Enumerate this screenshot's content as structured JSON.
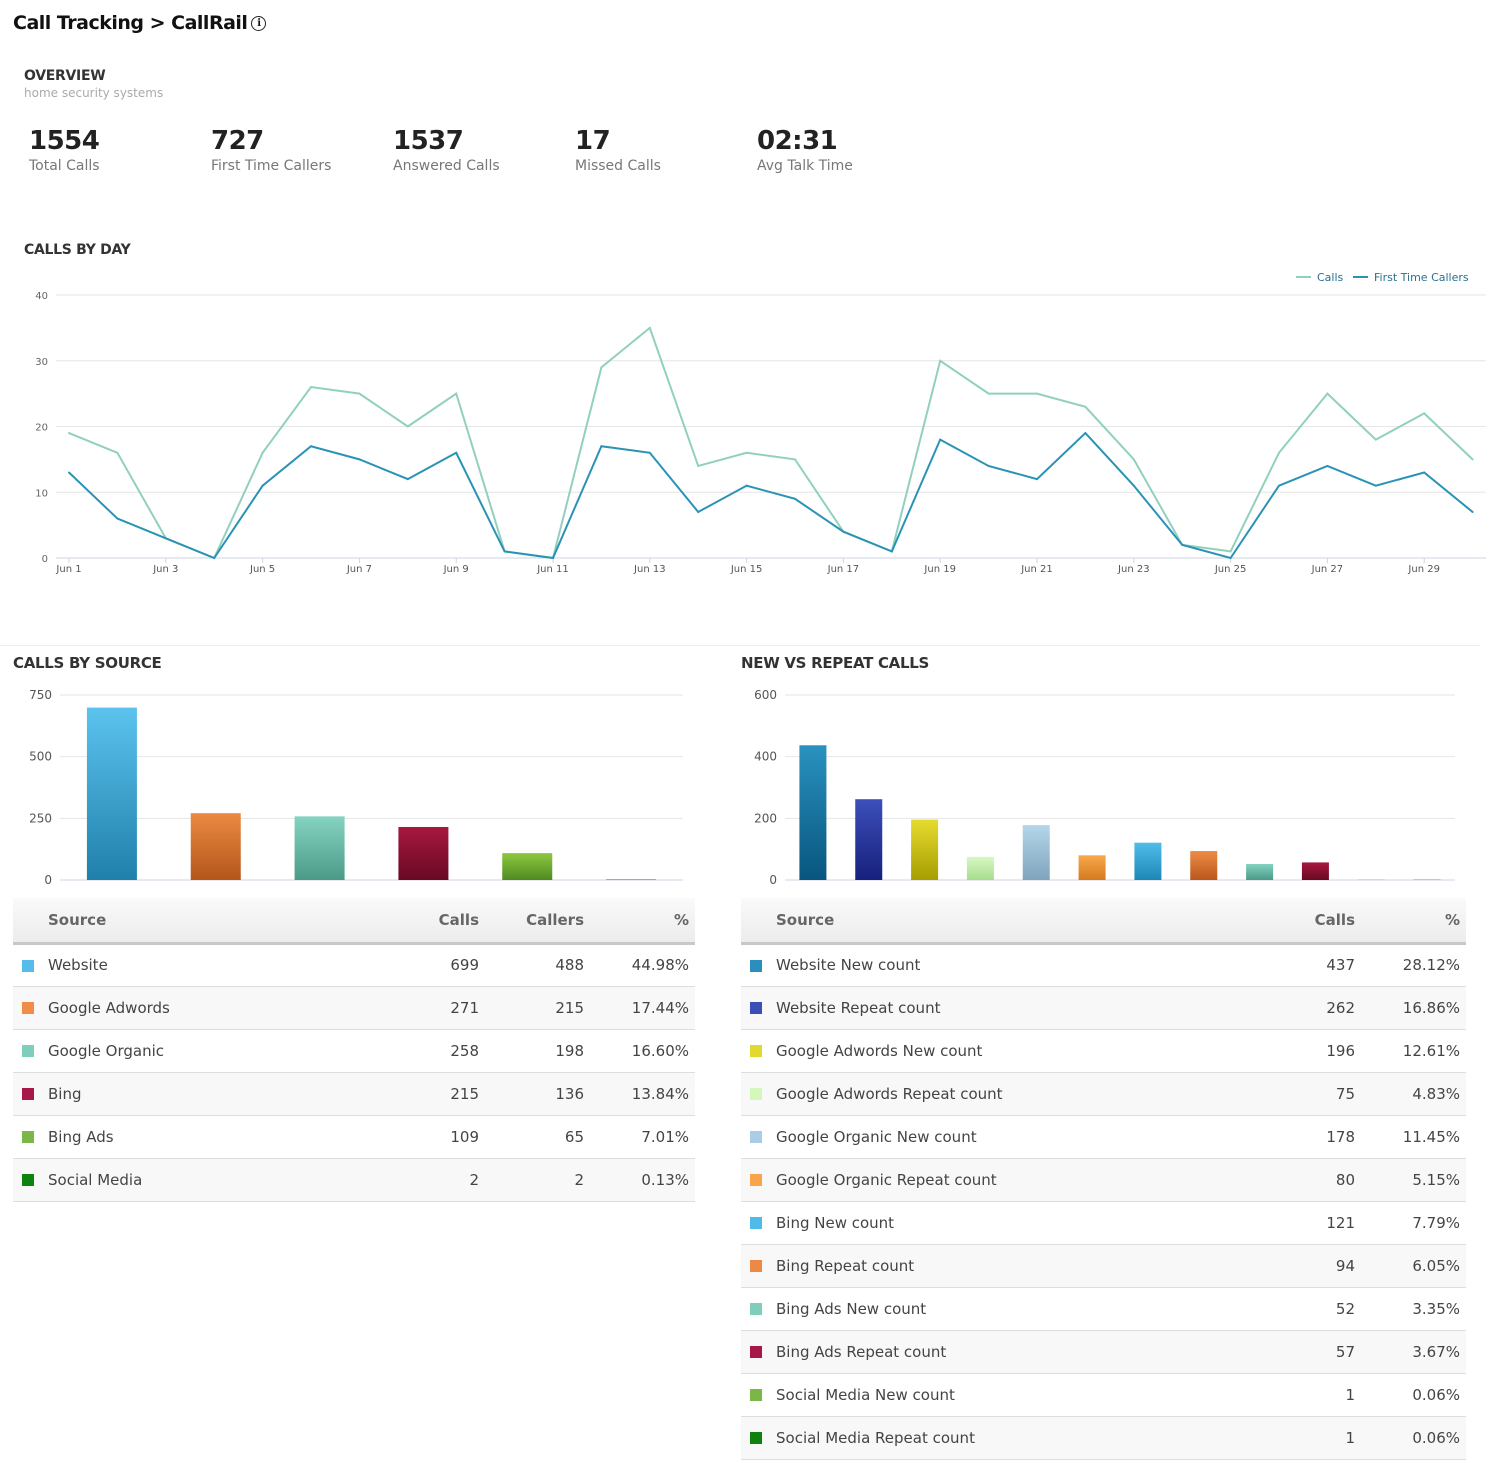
{
  "header": {
    "title": "Call Tracking > CallRail",
    "info_icon": "info-icon"
  },
  "overview": {
    "heading": "OVERVIEW",
    "subtitle": "home security systems",
    "kpis": [
      {
        "value": "1554",
        "label": "Total Calls"
      },
      {
        "value": "727",
        "label": "First Time Callers"
      },
      {
        "value": "1537",
        "label": "Answered Calls"
      },
      {
        "value": "17",
        "label": "Missed Calls"
      },
      {
        "value": "02:31",
        "label": "Avg Talk Time"
      }
    ]
  },
  "calls_by_day": {
    "heading": "CALLS BY DAY"
  },
  "calls_by_source": {
    "heading": "CALLS BY SOURCE",
    "columns": [
      "Source",
      "Calls",
      "Callers",
      "%"
    ],
    "rows": [
      {
        "source": "Website",
        "calls": "699",
        "callers": "488",
        "pct": "44.98%",
        "color": "#56bdea"
      },
      {
        "source": "Google Adwords",
        "calls": "271",
        "callers": "215",
        "pct": "17.44%",
        "color": "#f08d47"
      },
      {
        "source": "Google Organic",
        "calls": "258",
        "callers": "198",
        "pct": "16.60%",
        "color": "#7fcdbb"
      },
      {
        "source": "Bing",
        "calls": "215",
        "callers": "136",
        "pct": "13.84%",
        "color": "#a8174a"
      },
      {
        "source": "Bing Ads",
        "calls": "109",
        "callers": "65",
        "pct": "7.01%",
        "color": "#7ab648"
      },
      {
        "source": "Social Media",
        "calls": "2",
        "callers": "2",
        "pct": "0.13%",
        "color": "#0d820d"
      }
    ]
  },
  "new_vs_repeat": {
    "heading": "NEW VS REPEAT CALLS",
    "columns": [
      "Source",
      "Calls",
      "%"
    ],
    "rows": [
      {
        "source": "Website New count",
        "calls": "437",
        "pct": "28.12%",
        "color": "#2a8fbd"
      },
      {
        "source": "Website Repeat count",
        "calls": "262",
        "pct": "16.86%",
        "color": "#3a4fb5"
      },
      {
        "source": "Google Adwords New count",
        "calls": "196",
        "pct": "12.61%",
        "color": "#e2d82e"
      },
      {
        "source": "Google Adwords Repeat count",
        "calls": "75",
        "pct": "4.83%",
        "color": "#d4f7bc"
      },
      {
        "source": "Google Organic New count",
        "calls": "178",
        "pct": "11.45%",
        "color": "#a9cde4"
      },
      {
        "source": "Google Organic Repeat count",
        "calls": "80",
        "pct": "5.15%",
        "color": "#f6a548"
      },
      {
        "source": "Bing New count",
        "calls": "121",
        "pct": "7.79%",
        "color": "#4fbbe9"
      },
      {
        "source": "Bing Repeat count",
        "calls": "94",
        "pct": "6.05%",
        "color": "#ec8a45"
      },
      {
        "source": "Bing Ads New count",
        "calls": "52",
        "pct": "3.35%",
        "color": "#7fcdbb"
      },
      {
        "source": "Bing Ads Repeat count",
        "calls": "57",
        "pct": "3.67%",
        "color": "#a8174a"
      },
      {
        "source": "Social Media New count",
        "calls": "1",
        "pct": "0.06%",
        "color": "#7ab648"
      },
      {
        "source": "Social Media Repeat count",
        "calls": "1",
        "pct": "0.06%",
        "color": "#0d820d"
      }
    ]
  },
  "chart_data": [
    {
      "type": "line",
      "title": "CALLS BY DAY",
      "legend": "top-right",
      "grid": true,
      "ylim": [
        0,
        40
      ],
      "yticks": [
        "0",
        "10",
        "20",
        "30",
        "40"
      ],
      "x": [
        "Jun 1",
        "Jun 2",
        "Jun 3",
        "Jun 4",
        "Jun 5",
        "Jun 6",
        "Jun 7",
        "Jun 8",
        "Jun 9",
        "Jun 10",
        "Jun 11",
        "Jun 12",
        "Jun 13",
        "Jun 14",
        "Jun 15",
        "Jun 16",
        "Jun 17",
        "Jun 18",
        "Jun 19",
        "Jun 20",
        "Jun 21",
        "Jun 22",
        "Jun 23",
        "Jun 24",
        "Jun 25",
        "Jun 26",
        "Jun 27",
        "Jun 28",
        "Jun 29",
        "Jun 30"
      ],
      "xtick_labels": [
        "Jun 1",
        "Jun 3",
        "Jun 5",
        "Jun 7",
        "Jun 9",
        "Jun 11",
        "Jun 13",
        "Jun 15",
        "Jun 17",
        "Jun 19",
        "Jun 21",
        "Jun 23",
        "Jun 25",
        "Jun 27",
        "Jun 29"
      ],
      "series": [
        {
          "name": "Calls",
          "color": "#91d0bf",
          "values": [
            19,
            16,
            3,
            0,
            16,
            26,
            25,
            20,
            25,
            1,
            0,
            29,
            35,
            14,
            16,
            15,
            4,
            1,
            30,
            25,
            25,
            23,
            15,
            2,
            1,
            16,
            25,
            18,
            22,
            15
          ]
        },
        {
          "name": "First Time Callers",
          "color": "#2a93b5",
          "values": [
            13,
            6,
            3,
            0,
            11,
            17,
            15,
            12,
            16,
            1,
            0,
            17,
            16,
            7,
            11,
            9,
            4,
            1,
            18,
            14,
            12,
            19,
            11,
            2,
            0,
            11,
            14,
            11,
            13,
            7
          ]
        }
      ]
    },
    {
      "type": "bar",
      "title": "CALLS BY SOURCE",
      "ylim": [
        0,
        750
      ],
      "yticks": [
        "0",
        "250",
        "500",
        "750"
      ],
      "grid": true,
      "categories": [
        "Website",
        "Google Adwords",
        "Google Organic",
        "Bing",
        "Bing Ads",
        "Social Media"
      ],
      "values": [
        699,
        271,
        258,
        215,
        109,
        2
      ],
      "colors": [
        [
          "#5cc3ee",
          "#1f80ab"
        ],
        [
          "#ec8a42",
          "#b3561b"
        ],
        [
          "#86d3c2",
          "#4b9a88"
        ],
        [
          "#a8173f",
          "#670a24"
        ],
        [
          "#8ec840",
          "#4f8a21"
        ],
        [
          "#1a9a1a",
          "#0a6a0a"
        ]
      ]
    },
    {
      "type": "bar",
      "title": "NEW VS REPEAT CALLS",
      "ylim": [
        0,
        600
      ],
      "yticks": [
        "0",
        "200",
        "400",
        "600"
      ],
      "grid": true,
      "categories": [
        "Website New count",
        "Website Repeat count",
        "Google Adwords New count",
        "Google Adwords Repeat count",
        "Google Organic New count",
        "Google Organic Repeat count",
        "Bing New count",
        "Bing Repeat count",
        "Bing Ads New count",
        "Bing Ads Repeat count",
        "Social Media New count",
        "Social Media Repeat count"
      ],
      "values": [
        437,
        262,
        196,
        75,
        178,
        80,
        121,
        94,
        52,
        57,
        1,
        1
      ],
      "colors": [
        [
          "#2a92bf",
          "#08567e"
        ],
        [
          "#3c4fbb",
          "#17207c"
        ],
        [
          "#e6dc30",
          "#a69d00"
        ],
        [
          "#d8f8c2",
          "#a6dc8e"
        ],
        [
          "#b4d6ea",
          "#7fa4bc"
        ],
        [
          "#f8a84a",
          "#d47a20"
        ],
        [
          "#4fbde9",
          "#1e86b6"
        ],
        [
          "#ee8c45",
          "#b9561c"
        ],
        [
          "#84d2c0",
          "#4b9a88"
        ],
        [
          "#a8173f",
          "#670a24"
        ],
        [
          "#8ec840",
          "#4f8a21"
        ],
        [
          "#1a9a1a",
          "#0a6a0a"
        ]
      ]
    }
  ]
}
